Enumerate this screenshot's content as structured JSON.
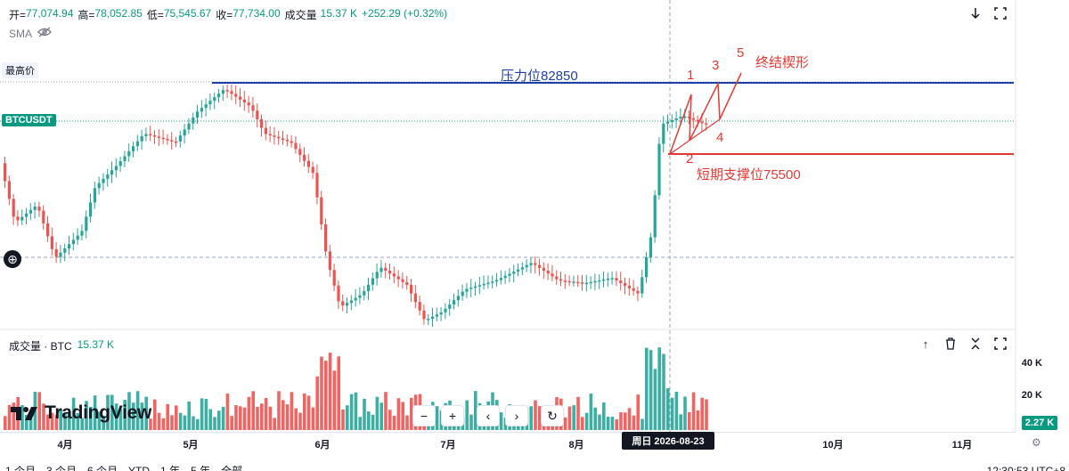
{
  "legend": {
    "open_label": "开=",
    "open_value": "77,074.94",
    "high_label": "高=",
    "high_value": "78,052.85",
    "low_label": "低=",
    "low_value": "75,545.67",
    "close_label": "收=",
    "close_value": "77,734.00",
    "volume_label": "成交量",
    "volume_value": "15.37 K",
    "change_value": "+252.29 (+0.32%)"
  },
  "indicator": {
    "name": "SMA"
  },
  "price_tags": {
    "high_label": "最高价",
    "symbol": "BTCUSDT"
  },
  "annotations": {
    "resistance": "压力位82850",
    "support": "短期支撑位75500",
    "wedge": "终结楔形",
    "wave_1": "1",
    "wave_2": "2",
    "wave_3": "3",
    "wave_4": "4",
    "wave_5": "5"
  },
  "volume_pane": {
    "title": "成交量 · BTC",
    "value": "15.37 K",
    "axis_labels": [
      "40 K",
      "20 K"
    ],
    "current_tag": "2.27 K"
  },
  "brand": {
    "name": "TradingView"
  },
  "time_axis": {
    "months": [
      "4月",
      "5月",
      "6月",
      "7月",
      "8月",
      "10月",
      "11月"
    ],
    "crosshair_date": "周日 2026-08-23"
  },
  "nav": {
    "zoom_out": "−",
    "zoom_in": "+",
    "prev": "‹",
    "next": "›",
    "reset": "↻"
  },
  "bottom_bar": {
    "ranges": [
      "1 个月",
      "3 个月",
      "6 个月",
      "YTD",
      "1 年",
      "5 年",
      "全部"
    ],
    "clock": "12:30:53 UTC+8"
  },
  "colors": {
    "up": "#26a69a",
    "down": "#ef5350",
    "resistance": "#1e3fa8",
    "support": "#e53935",
    "accent": "#089981"
  },
  "chart_data": {
    "type": "candlestick",
    "title": "",
    "xlabel": "",
    "ylabel": "",
    "resistance_level": 82850,
    "support_level": 75500,
    "ohlc_last": {
      "open": 77074.94,
      "high": 78052.85,
      "low": 75545.67,
      "close": 77734.0
    },
    "volume_ylim": [
      0,
      40000
    ],
    "grid": true
  }
}
